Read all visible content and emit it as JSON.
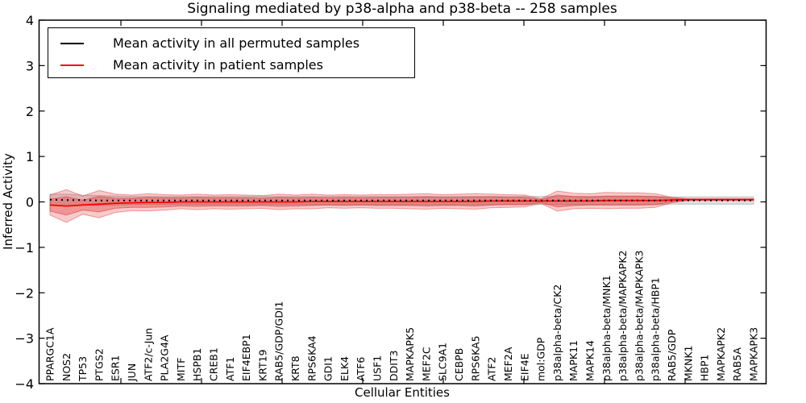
{
  "chart_data": {
    "type": "line",
    "title": "Signaling mediated by p38-alpha and p38-beta -- 258 samples",
    "xlabel": "Cellular Entities",
    "ylabel": "Inferred Activity",
    "ylim": [
      -4,
      4
    ],
    "y_tick_labels": [
      "4",
      "3",
      "2",
      "1",
      "0",
      "−1",
      "−2",
      "−3",
      "−4"
    ],
    "y_tick_values": [
      4,
      3,
      2,
      1,
      0,
      -1,
      -2,
      -3,
      -4
    ],
    "grid": false,
    "legend_position": "upper left",
    "legend": [
      {
        "label": "Mean activity in all permuted samples",
        "color": "#000000"
      },
      {
        "label": "Mean activity in patient samples",
        "color": "#ff0000"
      }
    ],
    "categories": [
      "PPARGC1A",
      "NOS2",
      "TP53",
      "PTGS2",
      "ESR1",
      "JUN",
      "ATF2/c-Jun",
      "PLA2G4A",
      "MITF",
      "HSPB1",
      "CREB1",
      "ATF1",
      "EIF4EBP1",
      "KRT19",
      "RAB5/GDP/GDI1",
      "KRT8",
      "RPS6KA4",
      "GDI1",
      "ELK4",
      "ATF6",
      "USF1",
      "DDIT3",
      "MAPKAPK5",
      "MEF2C",
      "SLC9A1",
      "CEBPB",
      "RPS6KA5",
      "ATF2",
      "MEF2A",
      "EIF4E",
      "mol:GDP",
      "p38alpha-beta/CK2",
      "MAPK11",
      "MAPK14",
      "p38alpha-beta/MNK1",
      "p38alpha-beta/MAPKAPK2",
      "p38alpha-beta/MAPKAPK3",
      "p38alpha-beta/HBP1",
      "RAB5/GDP",
      "MKNK1",
      "HBP1",
      "MAPKAPK2",
      "RAB5A",
      "MAPKAPK3"
    ],
    "series": [
      {
        "name": "Mean activity in all permuted samples",
        "color": "#000000",
        "style": "dashed",
        "values": [
          0.05,
          0.04,
          0.04,
          0.03,
          0.03,
          0.03,
          0.03,
          0.03,
          0.03,
          0.03,
          0.03,
          0.03,
          0.03,
          0.03,
          0.03,
          0.03,
          0.03,
          0.03,
          0.03,
          0.03,
          0.03,
          0.03,
          0.03,
          0.03,
          0.03,
          0.03,
          0.03,
          0.03,
          0.03,
          0.03,
          0.03,
          0.03,
          0.03,
          0.03,
          0.03,
          0.03,
          0.03,
          0.03,
          0.03,
          0.03,
          0.03,
          0.03,
          0.03,
          0.03
        ]
      },
      {
        "name": "Mean activity in patient samples",
        "color": "#ff0000",
        "style": "solid",
        "values": [
          -0.07,
          -0.09,
          -0.07,
          -0.05,
          -0.03,
          -0.02,
          -0.01,
          -0.01,
          0,
          0,
          0,
          0,
          0,
          0,
          0,
          0,
          0.01,
          0.01,
          0.01,
          0.01,
          0.01,
          0.01,
          0.01,
          0.01,
          0.01,
          0.01,
          0.01,
          0.02,
          0.02,
          0.02,
          0.02,
          0.02,
          0.02,
          0.02,
          0.03,
          0.03,
          0.03,
          0.03,
          0.04,
          0.05,
          0.05,
          0.05,
          0.05,
          0.05
        ]
      }
    ],
    "bands": [
      {
        "name": "permuted-std-band",
        "center": "permuted",
        "color": "#808080",
        "alpha": 0.25,
        "half_widths": [
          0.12,
          0.13,
          0.11,
          0.11,
          0.1,
          0.09,
          0.09,
          0.09,
          0.09,
          0.09,
          0.09,
          0.09,
          0.09,
          0.09,
          0.09,
          0.09,
          0.09,
          0.09,
          0.09,
          0.09,
          0.09,
          0.09,
          0.09,
          0.09,
          0.09,
          0.09,
          0.09,
          0.09,
          0.09,
          0.09,
          0.09,
          0.09,
          0.09,
          0.09,
          0.09,
          0.09,
          0.09,
          0.09,
          0.08,
          0.08,
          0.08,
          0.08,
          0.08,
          0.08
        ]
      },
      {
        "name": "patient-outer-std-band",
        "center": "patient",
        "color": "#e03030",
        "alpha": 0.25,
        "half_widths": [
          0.22,
          0.36,
          0.2,
          0.3,
          0.2,
          0.17,
          0.19,
          0.17,
          0.15,
          0.17,
          0.15,
          0.16,
          0.15,
          0.14,
          0.17,
          0.15,
          0.16,
          0.14,
          0.15,
          0.14,
          0.15,
          0.15,
          0.16,
          0.17,
          0.15,
          0.16,
          0.17,
          0.15,
          0.14,
          0.13,
          0.05,
          0.22,
          0.17,
          0.16,
          0.18,
          0.17,
          0.17,
          0.15,
          0.06,
          0.02,
          0.02,
          0.02,
          0.02,
          0.02
        ]
      },
      {
        "name": "patient-inner-std-band",
        "center": "patient",
        "color": "#e03030",
        "alpha": 0.35,
        "half_widths": [
          0.13,
          0.2,
          0.11,
          0.17,
          0.11,
          0.1,
          0.11,
          0.1,
          0.09,
          0.1,
          0.09,
          0.09,
          0.09,
          0.08,
          0.1,
          0.09,
          0.09,
          0.08,
          0.09,
          0.08,
          0.09,
          0.09,
          0.09,
          0.1,
          0.09,
          0.09,
          0.1,
          0.09,
          0.08,
          0.08,
          0.03,
          0.13,
          0.1,
          0.09,
          0.1,
          0.1,
          0.1,
          0.09,
          0.04,
          0.01,
          0.01,
          0.01,
          0.01,
          0.01
        ]
      }
    ]
  }
}
